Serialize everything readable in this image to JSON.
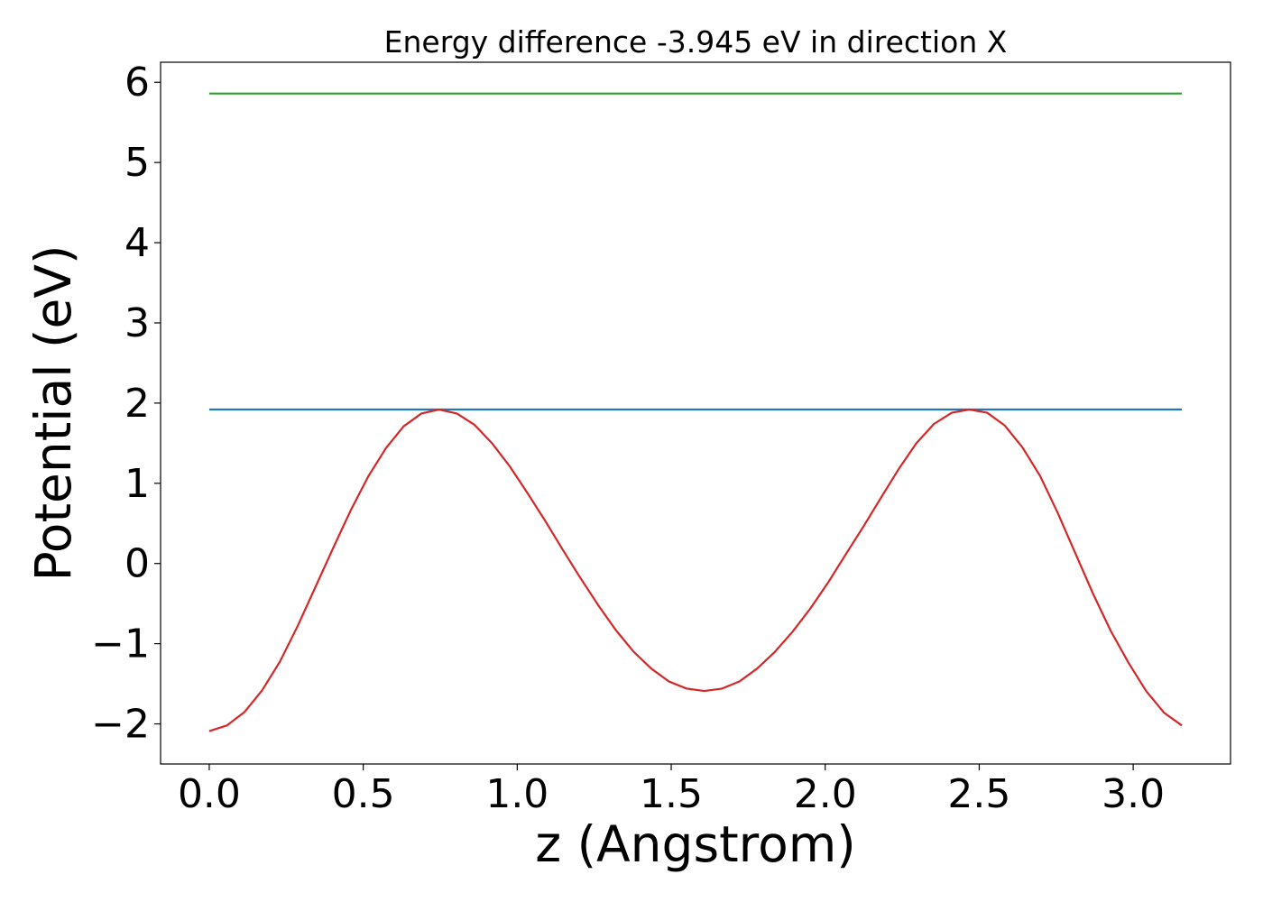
{
  "chart_data": {
    "type": "line",
    "title": "Energy difference -3.945 eV in direction X",
    "xlabel": "z (Angstrom)",
    "ylabel": "Potential (eV)",
    "xlim": [
      -0.158,
      3.316
    ],
    "ylim": [
      -2.5,
      6.25
    ],
    "xticks": [
      0.0,
      0.5,
      1.0,
      1.5,
      2.0,
      2.5,
      3.0
    ],
    "xtick_labels": [
      "0.0",
      "0.5",
      "1.0",
      "1.5",
      "2.0",
      "2.5",
      "3.0"
    ],
    "yticks": [
      -2,
      -1,
      0,
      1,
      2,
      3,
      4,
      5,
      6
    ],
    "ytick_labels": [
      "−2",
      "−1",
      "0",
      "1",
      "2",
      "3",
      "4",
      "5",
      "6"
    ],
    "grid": false,
    "legend": false,
    "series": [
      {
        "color": "#2ca02c",
        "x": [
          0.0,
          3.158
        ],
        "y": [
          5.86,
          5.86
        ]
      },
      {
        "color": "#1f77b4",
        "x": [
          0.0,
          3.158
        ],
        "y": [
          1.92,
          1.92
        ]
      },
      {
        "color": "#d62728",
        "x": [
          0.0,
          0.057,
          0.115,
          0.172,
          0.23,
          0.287,
          0.344,
          0.402,
          0.459,
          0.517,
          0.574,
          0.631,
          0.689,
          0.746,
          0.804,
          0.861,
          0.918,
          0.976,
          1.033,
          1.091,
          1.148,
          1.205,
          1.263,
          1.32,
          1.378,
          1.435,
          1.492,
          1.55,
          1.607,
          1.665,
          1.722,
          1.779,
          1.837,
          1.894,
          1.952,
          2.009,
          2.066,
          2.124,
          2.181,
          2.239,
          2.296,
          2.353,
          2.411,
          2.468,
          2.526,
          2.583,
          2.64,
          2.698,
          2.755,
          2.813,
          2.87,
          2.927,
          2.985,
          3.042,
          3.1,
          3.158
        ],
        "y": [
          -2.09,
          -2.02,
          -1.85,
          -1.58,
          -1.22,
          -0.78,
          -0.3,
          0.19,
          0.66,
          1.09,
          1.44,
          1.71,
          1.87,
          1.92,
          1.87,
          1.73,
          1.5,
          1.21,
          0.88,
          0.53,
          0.17,
          -0.18,
          -0.52,
          -0.83,
          -1.1,
          -1.31,
          -1.47,
          -1.56,
          -1.59,
          -1.56,
          -1.47,
          -1.31,
          -1.1,
          -0.85,
          -0.56,
          -0.24,
          0.11,
          0.46,
          0.82,
          1.18,
          1.5,
          1.74,
          1.88,
          1.92,
          1.88,
          1.72,
          1.45,
          1.09,
          0.63,
          0.12,
          -0.38,
          -0.84,
          -1.24,
          -1.59,
          -1.86,
          -2.02
        ]
      }
    ]
  }
}
